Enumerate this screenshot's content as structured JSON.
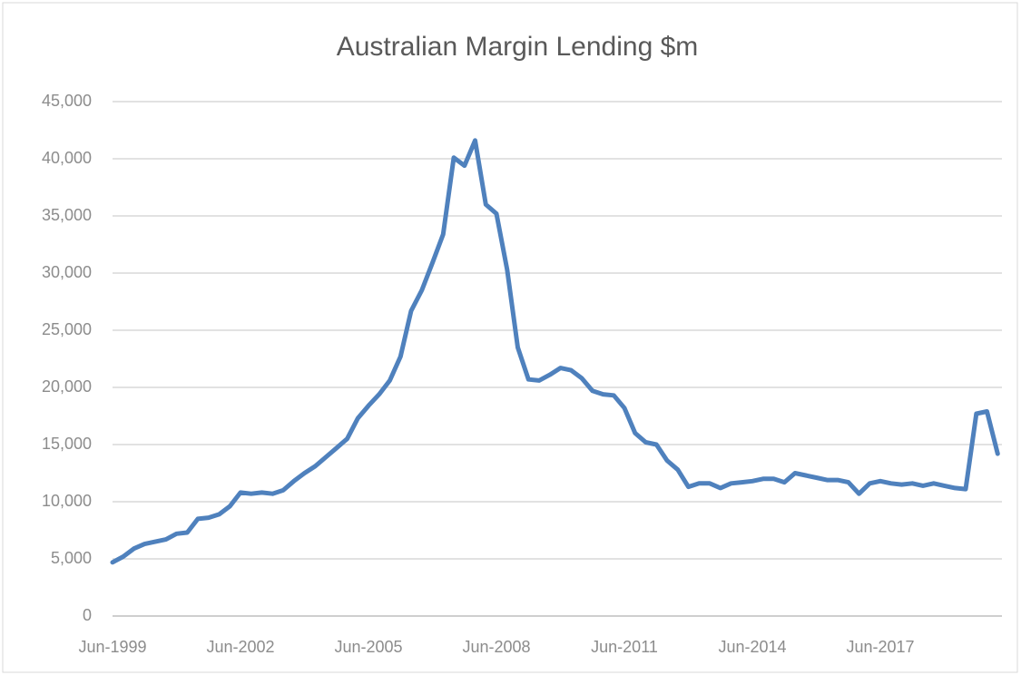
{
  "chart_data": {
    "type": "line",
    "title": "Australian Margin Lending $m",
    "categories": [
      "Jun-1999",
      null,
      null,
      null,
      null,
      null,
      null,
      null,
      null,
      null,
      null,
      null,
      "Jun-2002",
      null,
      null,
      null,
      null,
      null,
      null,
      null,
      null,
      null,
      null,
      null,
      "Jun-2005",
      null,
      null,
      null,
      null,
      null,
      null,
      null,
      null,
      null,
      null,
      null,
      "Jun-2008",
      null,
      null,
      null,
      null,
      null,
      null,
      null,
      null,
      null,
      null,
      null,
      "Jun-2011",
      null,
      null,
      null,
      null,
      null,
      null,
      null,
      null,
      null,
      null,
      null,
      "Jun-2014",
      null,
      null,
      null,
      null,
      null,
      null,
      null,
      null,
      null,
      null,
      null,
      "Jun-2017",
      null,
      null,
      null,
      null,
      null,
      null,
      null,
      null,
      null,
      null,
      null
    ],
    "series": [
      {
        "name": "Margin lending",
        "color": "#4f81bd",
        "values": [
          4700,
          5200,
          5900,
          6300,
          6500,
          6700,
          7200,
          7300,
          8500,
          8600,
          8900,
          9600,
          10800,
          10700,
          10800,
          10700,
          11000,
          11800,
          12500,
          13100,
          13900,
          14700,
          15500,
          17300,
          18400,
          19400,
          20600,
          22700,
          26700,
          28500,
          30900,
          33400,
          40100,
          39400,
          41600,
          36000,
          35200,
          30300,
          23500,
          20700,
          20600,
          21100,
          21700,
          21500,
          20800,
          19700,
          19400,
          19300,
          18200,
          16000,
          15200,
          15000,
          13600,
          12800,
          11300,
          11600,
          11600,
          11200,
          11600,
          11700,
          11800,
          12000,
          12000,
          11700,
          12500,
          12300,
          12100,
          11900,
          11900,
          11700,
          10700,
          11600,
          11800,
          11600,
          11500,
          11600,
          11400,
          11600,
          11400,
          11200,
          11100,
          17700,
          17900,
          14200
        ]
      }
    ],
    "ylim": [
      0,
      45000
    ],
    "yticks": [
      0,
      {
        "value": 5000,
        "label": "5,000"
      },
      {
        "value": 10000,
        "label": "10,000"
      },
      {
        "value": 15000,
        "label": "15,000"
      },
      {
        "value": 20000,
        "label": "20,000"
      },
      {
        "value": 25000,
        "label": "25,000"
      },
      {
        "value": 30000,
        "label": "30,000"
      },
      {
        "value": 35000,
        "label": "35,000"
      },
      {
        "value": 40000,
        "label": "40,000"
      },
      {
        "value": 45000,
        "label": "45,000"
      }
    ],
    "grid": true
  }
}
